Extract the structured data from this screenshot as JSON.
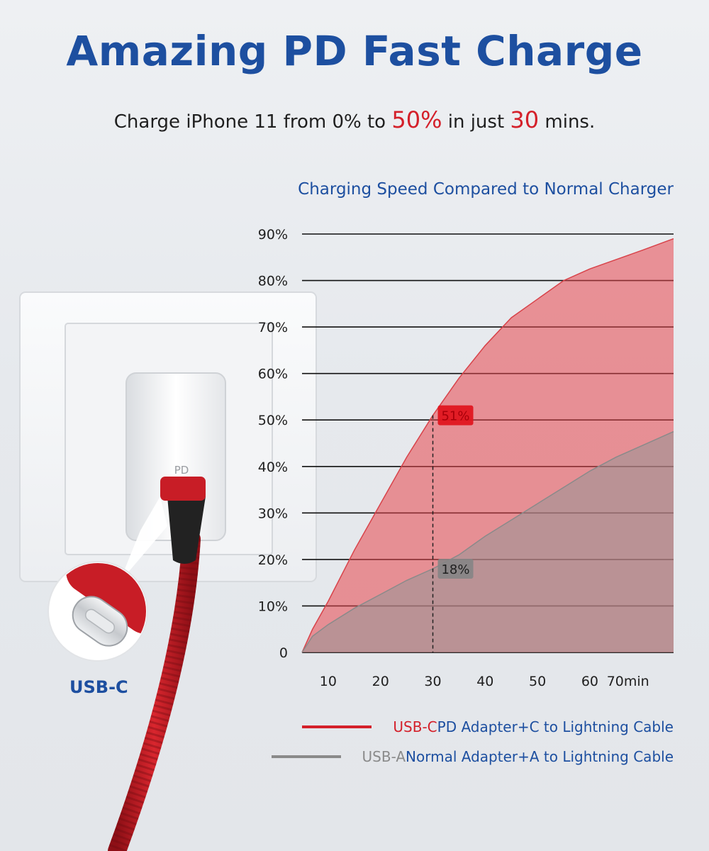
{
  "headline": "Amazing PD Fast Charge",
  "subline": {
    "part1": "Charge iPhone 11 from 0% to ",
    "highlight1": "50%",
    "part2": " in just ",
    "highlight2": "30",
    "part3": " mins."
  },
  "product": {
    "adapter_label": "PD",
    "connector_label": "USB-C"
  },
  "colors": {
    "brand_blue": "#1d4fa0",
    "accent_red": "#d4202a",
    "gray": "#8a8a8a"
  },
  "chart_data": {
    "type": "area",
    "title": "Charging Speed Compared to Normal Charger",
    "x_ticks": [
      "10",
      "20",
      "30",
      "40",
      "50",
      "60",
      "70min"
    ],
    "x_tick_values": [
      10,
      20,
      30,
      40,
      50,
      60,
      70
    ],
    "y_ticks": [
      "0",
      "10%",
      "20%",
      "30%",
      "40%",
      "50%",
      "60%",
      "70%",
      "80%",
      "90%"
    ],
    "y_tick_values": [
      0,
      10,
      20,
      30,
      40,
      50,
      60,
      70,
      80,
      90
    ],
    "xlim": [
      5,
      76
    ],
    "ylim": [
      0,
      90
    ],
    "grid": "horizontal",
    "legend_position": "bottom-right",
    "series": [
      {
        "name": "USB-C PD Adapter+C to Lightning Cable",
        "legend_prefix": "USB-C",
        "legend_rest": " PD Adapter+C to Lightning Cable",
        "color": "#d4202a",
        "x": [
          5,
          7,
          10,
          15,
          20,
          25,
          30,
          35,
          40,
          45,
          50,
          55,
          60,
          65,
          70,
          76
        ],
        "values": [
          0,
          5,
          11,
          22,
          32,
          42,
          51,
          59,
          66,
          72,
          76,
          80,
          82.5,
          84.5,
          86.5,
          89
        ]
      },
      {
        "name": "USB-A Normal Adapter+A to Lightning Cable",
        "legend_prefix": "USB-A",
        "legend_rest": " Normal Adapter+A to Lightning Cable",
        "color": "#8a8a8a",
        "x": [
          5,
          7,
          10,
          15,
          20,
          25,
          30,
          35,
          40,
          45,
          50,
          55,
          60,
          65,
          70,
          76
        ],
        "values": [
          0,
          3.5,
          6,
          9.5,
          12.5,
          15.5,
          18,
          21,
          25,
          28.5,
          32,
          35.5,
          39,
          42,
          44.5,
          47.5
        ]
      }
    ],
    "annotations": [
      {
        "x": 30,
        "label": "51%",
        "series": 0,
        "y": 51
      },
      {
        "x": 30,
        "label": "18%",
        "series": 1,
        "y": 18
      }
    ]
  }
}
